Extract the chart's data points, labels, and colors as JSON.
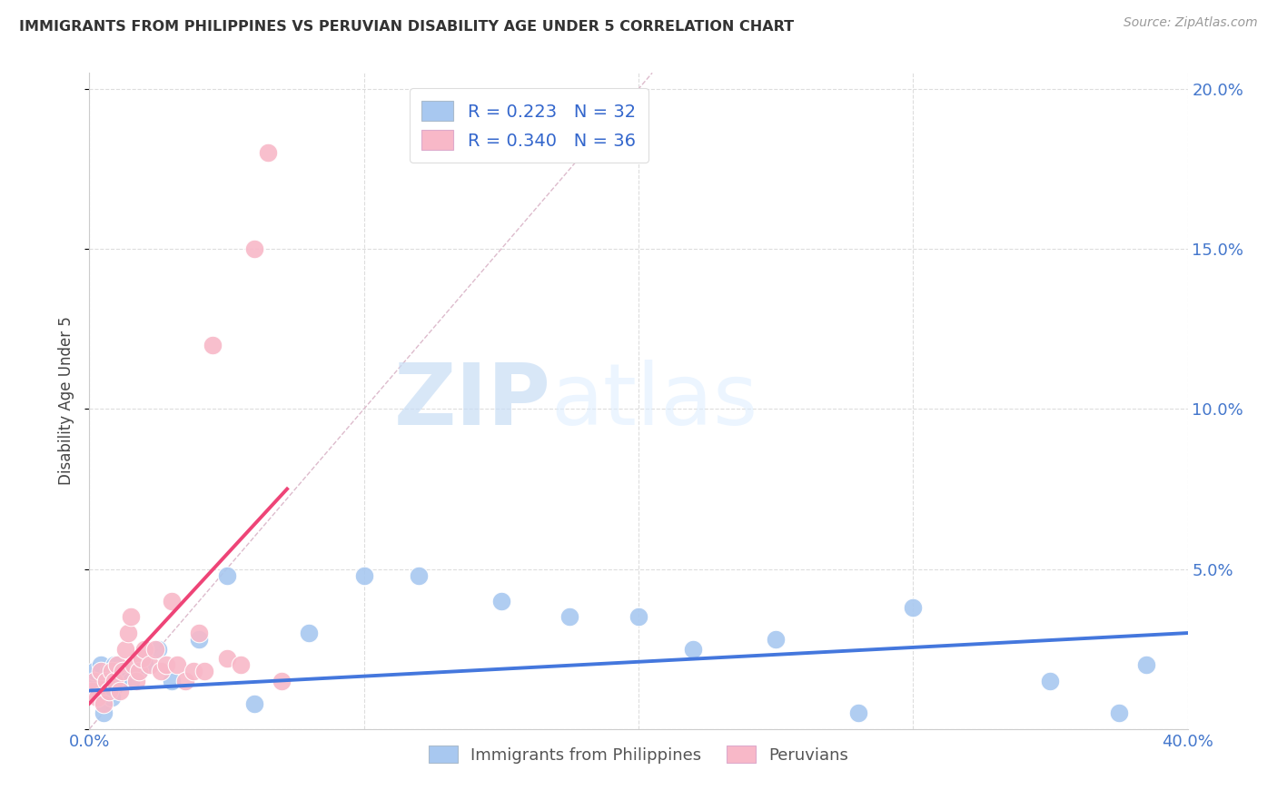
{
  "title": "IMMIGRANTS FROM PHILIPPINES VS PERUVIAN DISABILITY AGE UNDER 5 CORRELATION CHART",
  "source": "Source: ZipAtlas.com",
  "ylabel": "Disability Age Under 5",
  "xlim": [
    0,
    0.4
  ],
  "ylim": [
    0,
    0.205
  ],
  "xticks": [
    0.0,
    0.1,
    0.2,
    0.3,
    0.4
  ],
  "yticks": [
    0.0,
    0.05,
    0.1,
    0.15,
    0.2
  ],
  "blue_color": "#a8c8f0",
  "pink_color": "#f8b8c8",
  "blue_line_color": "#4477dd",
  "pink_line_color": "#ee4477",
  "R_blue": 0.223,
  "N_blue": 32,
  "R_pink": 0.34,
  "N_pink": 36,
  "legend_label_blue": "Immigrants from Philippines",
  "legend_label_pink": "Peruvians",
  "watermark_zip": "ZIP",
  "watermark_atlas": "atlas",
  "blue_x": [
    0.001,
    0.002,
    0.003,
    0.004,
    0.005,
    0.006,
    0.007,
    0.008,
    0.009,
    0.01,
    0.012,
    0.015,
    0.018,
    0.02,
    0.025,
    0.03,
    0.04,
    0.05,
    0.06,
    0.08,
    0.1,
    0.12,
    0.15,
    0.175,
    0.2,
    0.22,
    0.25,
    0.28,
    0.3,
    0.35,
    0.375,
    0.385
  ],
  "blue_y": [
    0.015,
    0.018,
    0.012,
    0.02,
    0.005,
    0.015,
    0.018,
    0.01,
    0.02,
    0.018,
    0.015,
    0.015,
    0.018,
    0.02,
    0.025,
    0.015,
    0.028,
    0.048,
    0.008,
    0.03,
    0.048,
    0.048,
    0.04,
    0.035,
    0.035,
    0.025,
    0.028,
    0.005,
    0.038,
    0.015,
    0.005,
    0.02
  ],
  "pink_x": [
    0.001,
    0.002,
    0.003,
    0.004,
    0.005,
    0.006,
    0.007,
    0.008,
    0.009,
    0.01,
    0.011,
    0.012,
    0.013,
    0.014,
    0.015,
    0.016,
    0.017,
    0.018,
    0.019,
    0.02,
    0.022,
    0.024,
    0.026,
    0.028,
    0.03,
    0.032,
    0.035,
    0.038,
    0.04,
    0.042,
    0.045,
    0.05,
    0.055,
    0.06,
    0.065,
    0.07
  ],
  "pink_y": [
    0.012,
    0.015,
    0.01,
    0.018,
    0.008,
    0.015,
    0.012,
    0.018,
    0.015,
    0.02,
    0.012,
    0.018,
    0.025,
    0.03,
    0.035,
    0.02,
    0.015,
    0.018,
    0.022,
    0.025,
    0.02,
    0.025,
    0.018,
    0.02,
    0.04,
    0.02,
    0.015,
    0.018,
    0.03,
    0.018,
    0.12,
    0.022,
    0.02,
    0.15,
    0.18,
    0.015
  ],
  "blue_trend_x": [
    0.0,
    0.4
  ],
  "blue_trend_y": [
    0.012,
    0.03
  ],
  "pink_trend_x": [
    0.0,
    0.072
  ],
  "pink_trend_y": [
    0.008,
    0.075
  ]
}
